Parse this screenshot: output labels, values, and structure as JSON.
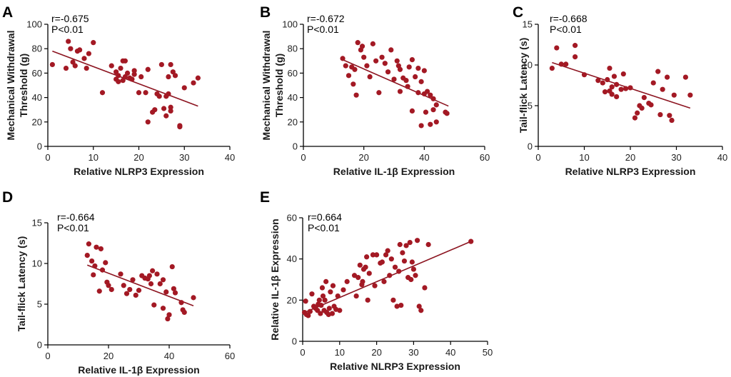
{
  "colors": {
    "point": "#a31924",
    "fit_line": "#8c1420",
    "axis": "#000000"
  },
  "chart_data": [
    {
      "id": "A",
      "letter": "A",
      "type": "scatter",
      "xlabel": "Relative NLRP3 Expression",
      "ylabel": [
        "Mechanical Withdrawal",
        "Threshold (g)"
      ],
      "xlim": [
        0,
        40
      ],
      "ylim": [
        0,
        100
      ],
      "xticks": [
        0,
        10,
        20,
        30,
        40
      ],
      "yticks": [
        0,
        20,
        40,
        60,
        80,
        100
      ],
      "r_text": "r=-0.675",
      "p_text": "P<0.01",
      "fit": {
        "x": [
          1,
          33
        ],
        "y": [
          78,
          33
        ]
      },
      "points": [
        [
          1,
          67
        ],
        [
          4,
          64
        ],
        [
          4.5,
          86
        ],
        [
          5,
          80
        ],
        [
          5.5,
          69
        ],
        [
          6,
          66
        ],
        [
          6.5,
          78
        ],
        [
          7,
          79
        ],
        [
          8,
          72
        ],
        [
          8.5,
          64
        ],
        [
          9,
          76
        ],
        [
          10,
          85
        ],
        [
          12,
          44
        ],
        [
          14,
          66
        ],
        [
          15,
          55
        ],
        [
          15,
          61
        ],
        [
          15.5,
          53
        ],
        [
          15.5,
          58
        ],
        [
          16,
          64
        ],
        [
          16.5,
          70
        ],
        [
          16.5,
          54
        ],
        [
          17,
          57
        ],
        [
          17,
          70
        ],
        [
          17.5,
          60
        ],
        [
          18,
          56
        ],
        [
          18.5,
          55
        ],
        [
          19,
          59
        ],
        [
          19,
          62
        ],
        [
          20,
          44
        ],
        [
          20.5,
          57
        ],
        [
          21.5,
          44
        ],
        [
          22,
          20
        ],
        [
          22,
          63
        ],
        [
          23,
          28
        ],
        [
          23.5,
          30
        ],
        [
          24,
          43
        ],
        [
          24.5,
          41
        ],
        [
          25,
          67
        ],
        [
          25.5,
          31
        ],
        [
          26,
          25
        ],
        [
          26,
          41
        ],
        [
          26.5,
          57
        ],
        [
          26.5,
          43
        ],
        [
          27,
          32
        ],
        [
          27,
          67
        ],
        [
          27,
          29
        ],
        [
          27.5,
          61
        ],
        [
          28,
          58
        ],
        [
          29,
          17
        ],
        [
          29,
          16
        ],
        [
          30,
          48
        ],
        [
          32,
          52
        ],
        [
          33,
          56
        ]
      ]
    },
    {
      "id": "B",
      "letter": "B",
      "type": "scatter",
      "xlabel": "Relative IL-1β Expression",
      "ylabel": [
        "Mechanical Withdrawal",
        "Threshold (g)"
      ],
      "xlim": [
        0,
        60
      ],
      "ylim": [
        0,
        100
      ],
      "xticks": [
        0,
        20,
        40,
        60
      ],
      "yticks": [
        0,
        20,
        40,
        60,
        80,
        100
      ],
      "r_text": "r=-0.672",
      "p_text": "P<0.01",
      "fit": {
        "x": [
          13,
          48
        ],
        "y": [
          71,
          33
        ]
      },
      "points": [
        [
          13,
          72
        ],
        [
          14,
          66
        ],
        [
          15,
          58
        ],
        [
          16,
          65
        ],
        [
          16.5,
          51
        ],
        [
          17,
          63
        ],
        [
          17.5,
          42
        ],
        [
          18,
          85
        ],
        [
          19,
          79
        ],
        [
          19.5,
          82
        ],
        [
          20,
          73
        ],
        [
          21,
          66
        ],
        [
          22,
          57
        ],
        [
          23,
          84
        ],
        [
          24,
          70
        ],
        [
          25,
          44
        ],
        [
          26,
          73
        ],
        [
          27,
          68
        ],
        [
          28,
          61
        ],
        [
          29,
          79
        ],
        [
          30,
          55
        ],
        [
          31,
          70
        ],
        [
          31.5,
          66
        ],
        [
          32,
          63
        ],
        [
          32,
          45
        ],
        [
          33,
          56
        ],
        [
          34,
          54
        ],
        [
          34.5,
          49
        ],
        [
          35,
          65
        ],
        [
          36,
          29
        ],
        [
          36,
          71
        ],
        [
          37,
          57
        ],
        [
          38,
          64
        ],
        [
          38,
          44
        ],
        [
          39,
          53
        ],
        [
          39,
          17
        ],
        [
          40,
          62
        ],
        [
          40,
          43
        ],
        [
          40.5,
          28
        ],
        [
          41,
          45
        ],
        [
          42,
          18
        ],
        [
          42,
          42
        ],
        [
          43,
          39
        ],
        [
          43,
          30
        ],
        [
          44,
          34
        ],
        [
          44,
          20
        ],
        [
          47,
          28
        ],
        [
          47.5,
          27
        ]
      ]
    },
    {
      "id": "C",
      "letter": "C",
      "type": "scatter",
      "xlabel": "Relative NLRP3 Expression",
      "ylabel": [
        "Tail-flick Latency (s)"
      ],
      "xlim": [
        0,
        40
      ],
      "ylim": [
        0,
        15
      ],
      "xticks": [
        0,
        10,
        20,
        30,
        40
      ],
      "yticks": [
        0,
        5,
        10,
        15
      ],
      "r_text": "r=-0.668",
      "p_text": "P<0.01",
      "fit": {
        "x": [
          3,
          33
        ],
        "y": [
          10.3,
          4.7
        ]
      },
      "points": [
        [
          3,
          9.6
        ],
        [
          4,
          12.1
        ],
        [
          5,
          10.1
        ],
        [
          6,
          10.1
        ],
        [
          8,
          12.4
        ],
        [
          8,
          11
        ],
        [
          10,
          8.8
        ],
        [
          13,
          8.1
        ],
        [
          14,
          7.8
        ],
        [
          14.5,
          6.7
        ],
        [
          15,
          8.2
        ],
        [
          15.5,
          9.6
        ],
        [
          15.5,
          6.8
        ],
        [
          16,
          7.3
        ],
        [
          16,
          6.4
        ],
        [
          16.5,
          8.6
        ],
        [
          17,
          7.6
        ],
        [
          17,
          6.1
        ],
        [
          18,
          7
        ],
        [
          18.5,
          8.9
        ],
        [
          19,
          7.1
        ],
        [
          20,
          7.2
        ],
        [
          21,
          3.5
        ],
        [
          21.5,
          4.1
        ],
        [
          22,
          5
        ],
        [
          22.5,
          4.7
        ],
        [
          23,
          6
        ],
        [
          24,
          5.3
        ],
        [
          24.5,
          5.1
        ],
        [
          25,
          7.8
        ],
        [
          26,
          9.2
        ],
        [
          26.5,
          3.9
        ],
        [
          27,
          7
        ],
        [
          28,
          8.5
        ],
        [
          28.5,
          3.8
        ],
        [
          29,
          3.2
        ],
        [
          29.5,
          6.3
        ],
        [
          32,
          8.5
        ],
        [
          33,
          6.3
        ]
      ]
    },
    {
      "id": "D",
      "letter": "D",
      "type": "scatter",
      "xlabel": "Relative IL-1β Expression",
      "ylabel": [
        "Tail-flick Latency (s)"
      ],
      "xlim": [
        0,
        60
      ],
      "ylim": [
        0,
        15
      ],
      "xticks": [
        0,
        20,
        40,
        60
      ],
      "yticks": [
        0,
        5,
        10,
        15
      ],
      "r_text": "r=-0.664",
      "p_text": "P<0.01",
      "fit": {
        "x": [
          13,
          48
        ],
        "y": [
          9.8,
          4.8
        ]
      },
      "points": [
        [
          13,
          11
        ],
        [
          13.5,
          12.4
        ],
        [
          14.5,
          10.3
        ],
        [
          15,
          8.6
        ],
        [
          15.5,
          9.7
        ],
        [
          16,
          12
        ],
        [
          17,
          6.6
        ],
        [
          17.5,
          11.8
        ],
        [
          18,
          9.2
        ],
        [
          19,
          10.1
        ],
        [
          19.5,
          7.7
        ],
        [
          20,
          7.3
        ],
        [
          21,
          6.8
        ],
        [
          24,
          8.7
        ],
        [
          25,
          7.3
        ],
        [
          26,
          6.3
        ],
        [
          27,
          6.8
        ],
        [
          28,
          8
        ],
        [
          29,
          6.1
        ],
        [
          30,
          6.7
        ],
        [
          31,
          8.5
        ],
        [
          32,
          8.2
        ],
        [
          33,
          8.1
        ],
        [
          33.5,
          8.5
        ],
        [
          34,
          7.5
        ],
        [
          34.5,
          9.1
        ],
        [
          35,
          4.9
        ],
        [
          36,
          8.7
        ],
        [
          37,
          7.5
        ],
        [
          38,
          8
        ],
        [
          38,
          4.5
        ],
        [
          39,
          6.5
        ],
        [
          39.5,
          3.2
        ],
        [
          40,
          3.7
        ],
        [
          41,
          9.6
        ],
        [
          41.5,
          6.9
        ],
        [
          42,
          6.4
        ],
        [
          44,
          5.2
        ],
        [
          44.5,
          4.3
        ],
        [
          45,
          4
        ],
        [
          48,
          5.8
        ]
      ]
    },
    {
      "id": "E",
      "letter": "E",
      "type": "scatter",
      "xlabel": "Relative NLRP3 Expression",
      "ylabel": [
        "Relative IL-1β Expression"
      ],
      "xlim": [
        0,
        50
      ],
      "ylim": [
        0,
        60
      ],
      "xticks": [
        0,
        10,
        20,
        30,
        40,
        50
      ],
      "yticks": [
        0,
        20,
        40,
        60
      ],
      "r_text": "r=0.664",
      "p_text": "P<0.01",
      "fit": {
        "x": [
          0.5,
          45.5
        ],
        "y": [
          14,
          48.5
        ]
      },
      "points": [
        [
          0.5,
          14
        ],
        [
          0.8,
          19.5
        ],
        [
          1,
          13
        ],
        [
          1.5,
          12.5
        ],
        [
          2,
          14.5
        ],
        [
          2.5,
          23
        ],
        [
          3,
          17
        ],
        [
          3.5,
          16
        ],
        [
          4,
          15
        ],
        [
          4.2,
          18
        ],
        [
          4.5,
          20
        ],
        [
          4.8,
          13.5
        ],
        [
          5,
          17.5
        ],
        [
          5.3,
          26
        ],
        [
          5.5,
          22
        ],
        [
          5.8,
          15
        ],
        [
          6,
          20
        ],
        [
          6.3,
          29
        ],
        [
          6.5,
          14
        ],
        [
          7,
          13
        ],
        [
          7.2,
          16
        ],
        [
          7.5,
          24
        ],
        [
          8,
          13.5
        ],
        [
          8.2,
          27
        ],
        [
          8.5,
          17
        ],
        [
          9,
          15.5
        ],
        [
          9.5,
          22
        ],
        [
          10,
          15
        ],
        [
          11,
          25
        ],
        [
          12,
          29
        ],
        [
          14,
          32
        ],
        [
          14.5,
          22
        ],
        [
          15,
          31
        ],
        [
          15.5,
          37
        ],
        [
          16,
          27.5
        ],
        [
          16.2,
          29
        ],
        [
          16.5,
          35
        ],
        [
          17,
          36
        ],
        [
          17.3,
          41
        ],
        [
          17.6,
          20
        ],
        [
          18,
          33
        ],
        [
          19,
          42
        ],
        [
          19.5,
          27
        ],
        [
          20,
          42
        ],
        [
          21,
          38
        ],
        [
          21.5,
          38.5
        ],
        [
          22,
          29
        ],
        [
          22.5,
          42
        ],
        [
          23,
          44
        ],
        [
          23.5,
          32
        ],
        [
          24,
          40
        ],
        [
          24.5,
          20
        ],
        [
          25,
          36
        ],
        [
          25.5,
          17
        ],
        [
          26,
          34
        ],
        [
          26.3,
          47
        ],
        [
          26.6,
          17.5
        ],
        [
          27,
          43
        ],
        [
          27.5,
          39
        ],
        [
          28,
          46.5
        ],
        [
          28.5,
          31
        ],
        [
          29,
          48
        ],
        [
          29.3,
          30
        ],
        [
          29.6,
          38.5
        ],
        [
          30,
          35
        ],
        [
          30.5,
          32
        ],
        [
          31,
          49
        ],
        [
          31.5,
          17
        ],
        [
          32,
          15
        ],
        [
          33,
          26
        ],
        [
          34,
          47
        ],
        [
          45.5,
          48.5
        ]
      ]
    }
  ]
}
